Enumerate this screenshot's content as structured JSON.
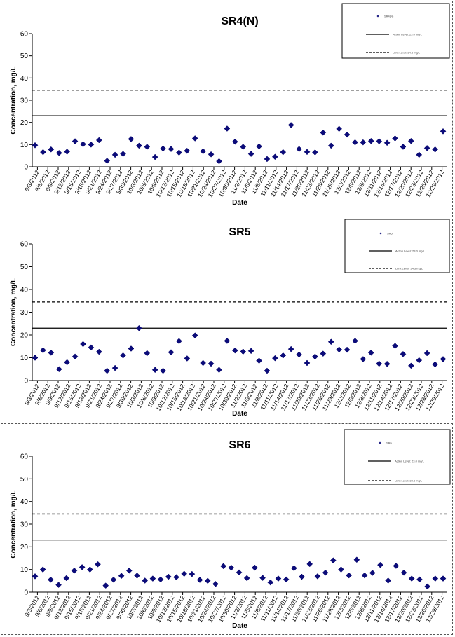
{
  "chart_data": [
    {
      "type": "scatter",
      "title": "SR4(N)",
      "xlabel": "Date",
      "ylabel": "Concentration, mg/L",
      "ylim": [
        0,
        60
      ],
      "yticks": [
        "0",
        "10",
        "20",
        "30",
        "40",
        "50",
        "60"
      ],
      "xticks": [
        "9/3/2012",
        "9/6/2012",
        "9/9/2012",
        "9/12/2012",
        "9/15/2012",
        "9/18/2012",
        "9/21/2012",
        "9/24/2012",
        "9/27/2012",
        "9/30/2012",
        "10/3/2012",
        "10/6/2012",
        "10/9/2012",
        "10/12/2012",
        "10/15/2012",
        "10/18/2012",
        "10/21/2012",
        "10/24/2012",
        "10/27/2012",
        "10/30/2012",
        "11/2/2012",
        "11/5/2012",
        "11/8/2012",
        "11/11/2012",
        "11/14/2012",
        "11/17/2012",
        "11/20/2012",
        "11/23/2012",
        "11/26/2012",
        "11/29/2012",
        "12/2/2012",
        "12/5/2012",
        "12/8/2012",
        "12/11/2012",
        "12/14/2012",
        "12/17/2012",
        "12/20/2012",
        "12/23/2012",
        "12/26/2012",
        "12/29/2012"
      ],
      "action_level": 23,
      "limit_level": 34.5,
      "legend": {
        "placement": "top-right",
        "series": "SR4(N)",
        "action": "Action Level: 23.0 mg/L",
        "limit": "Limit Level: 34.5 mg/L"
      },
      "series": [
        {
          "values": [
            9.7,
            6.6,
            7.8,
            6.2,
            6.8,
            11.5,
            10.2,
            10.0,
            12.0,
            2.7,
            5.4,
            5.8,
            12.5,
            9.5,
            9.0,
            4.4,
            8.2,
            8.0,
            6.4,
            7.2,
            12.8,
            7.0,
            5.6,
            2.5,
            17.2,
            11.3,
            9.0,
            5.8,
            9.2,
            3.5,
            4.5,
            6.6,
            18.8,
            8.0,
            6.7,
            6.5,
            15.4,
            9.5,
            17.1,
            14.5,
            11.0,
            11.0,
            11.6,
            11.5,
            10.8,
            12.8,
            9.0,
            11.6,
            5.4,
            8.4,
            7.8,
            16.0
          ]
        }
      ]
    },
    {
      "type": "scatter",
      "title": "SR5",
      "xlabel": "Date",
      "ylabel": "Concentration, mg/L",
      "ylim": [
        0,
        60
      ],
      "yticks": [
        "0",
        "10",
        "20",
        "30",
        "40",
        "50",
        "60"
      ],
      "xticks": [
        "9/3/2012",
        "9/6/2012",
        "9/9/2012",
        "9/12/2012",
        "9/15/2012",
        "9/18/2012",
        "9/21/2012",
        "9/24/2012",
        "9/27/2012",
        "9/30/2012",
        "10/3/2012",
        "10/6/2012",
        "10/9/2012",
        "10/12/2012",
        "10/15/2012",
        "10/18/2012",
        "10/21/2012",
        "10/24/2012",
        "10/27/2012",
        "10/30/2012",
        "11/2/2012",
        "11/5/2012",
        "11/8/2012",
        "11/11/2012",
        "11/14/2012",
        "11/17/2012",
        "11/20/2012",
        "11/23/2012",
        "11/26/2012",
        "11/29/2012",
        "12/2/2012",
        "12/5/2012",
        "12/8/2012",
        "12/11/2012",
        "12/14/2012",
        "12/17/2012",
        "12/20/2012",
        "12/23/2012",
        "12/26/2012",
        "12/29/2012"
      ],
      "action_level": 23,
      "limit_level": 34.5,
      "legend": {
        "placement": "top-right",
        "series": "SR5",
        "action": "Action Level: 23.0 mg/L",
        "limit": "Limit Level: 34.5 mg/L"
      },
      "series": [
        {
          "values": [
            10.0,
            13.3,
            12.2,
            5.0,
            8.0,
            10.5,
            16.0,
            14.5,
            12.6,
            4.3,
            5.5,
            11.0,
            14.0,
            23.0,
            12.0,
            4.7,
            4.3,
            12.4,
            17.3,
            9.7,
            19.8,
            7.7,
            7.4,
            4.7,
            17.4,
            13.2,
            12.7,
            13.0,
            8.7,
            4.3,
            9.8,
            11.0,
            13.8,
            11.4,
            7.7,
            10.5,
            11.8,
            17.0,
            13.6,
            13.5,
            17.4,
            9.4,
            12.2,
            7.4,
            7.3,
            15.2,
            11.6,
            6.5,
            8.9,
            12.0,
            7.1,
            9.4
          ]
        }
      ]
    },
    {
      "type": "scatter",
      "title": "SR6",
      "xlabel": "Date",
      "ylabel": "Concentration, mg/L",
      "ylim": [
        0,
        60
      ],
      "yticks": [
        "0",
        "10",
        "20",
        "30",
        "40",
        "50",
        "60"
      ],
      "xticks": [
        "9/3/2012",
        "9/6/2012",
        "9/9/2012",
        "9/12/2012",
        "9/15/2012",
        "9/18/2012",
        "9/21/2012",
        "9/24/2012",
        "9/27/2012",
        "9/30/2012",
        "10/3/2012",
        "10/6/2012",
        "10/9/2012",
        "10/12/2012",
        "10/15/2012",
        "10/18/2012",
        "10/21/2012",
        "10/24/2012",
        "10/27/2012",
        "10/30/2012",
        "11/2/2012",
        "11/5/2012",
        "11/8/2012",
        "11/11/2012",
        "11/14/2012",
        "11/17/2012",
        "11/20/2012",
        "11/23/2012",
        "11/26/2012",
        "11/29/2012",
        "12/2/2012",
        "12/5/2012",
        "12/8/2012",
        "12/11/2012",
        "12/14/2012",
        "12/17/2012",
        "12/20/2012",
        "12/23/2012",
        "12/26/2012",
        "12/29/2012"
      ],
      "action_level": 23,
      "limit_level": 34.5,
      "legend": {
        "placement": "top-right",
        "series": "SR6",
        "action": "Action Level: 23.0 mg/L",
        "limit": "Limit Level: 34.5 mg/L"
      },
      "series": [
        {
          "values": [
            7.0,
            10.0,
            5.5,
            3.2,
            6.2,
            9.5,
            11.0,
            10.0,
            12.3,
            2.9,
            5.5,
            7.2,
            9.5,
            7.3,
            5.1,
            6.0,
            5.6,
            6.8,
            6.6,
            8.1,
            8.0,
            5.4,
            5.0,
            3.6,
            11.5,
            10.8,
            8.7,
            6.2,
            10.8,
            6.3,
            4.3,
            6.0,
            5.6,
            10.6,
            6.8,
            12.4,
            7.0,
            8.6,
            14.0,
            10.0,
            7.4,
            14.3,
            7.4,
            8.5,
            12.0,
            5.1,
            11.6,
            8.6,
            6.0,
            5.6,
            2.5,
            6.0,
            6.0
          ]
        }
      ]
    }
  ]
}
